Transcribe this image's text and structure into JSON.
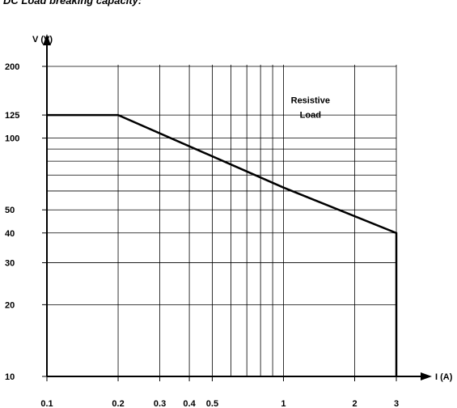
{
  "title": "DC Load breaking capacity:",
  "chart_data": {
    "type": "line",
    "title": "DC Load breaking capacity:",
    "xlabel": "I (A)",
    "ylabel": "V (V)",
    "xscale": "log",
    "yscale": "log",
    "xlim": [
      0.1,
      3
    ],
    "ylim": [
      10,
      200
    ],
    "x_ticks": [
      0.1,
      0.2,
      0.3,
      0.4,
      0.5,
      1,
      2,
      3
    ],
    "x_tick_labels": [
      "0.1",
      "0.2",
      "0.3",
      "0.4",
      "0.5",
      "1",
      "2",
      "3"
    ],
    "y_ticks": [
      10,
      20,
      30,
      40,
      50,
      100,
      125,
      200
    ],
    "y_tick_labels": [
      "10",
      "20",
      "30",
      "40",
      "50",
      "100",
      "125",
      "200"
    ],
    "x_gridlines": [
      0.2,
      0.3,
      0.4,
      0.5,
      0.6,
      0.7,
      0.8,
      0.9,
      1,
      2,
      3
    ],
    "y_gridlines": [
      20,
      30,
      40,
      50,
      60,
      70,
      80,
      90,
      100,
      125,
      200
    ],
    "grid": true,
    "annotations": [
      {
        "text": [
          "Resistive",
          "Load"
        ],
        "x": 1.3,
        "y": 140
      }
    ],
    "series": [
      {
        "x": [
          0.1,
          0.2,
          1,
          3,
          3
        ],
        "y": [
          125,
          125,
          62,
          40,
          10
        ]
      }
    ]
  }
}
